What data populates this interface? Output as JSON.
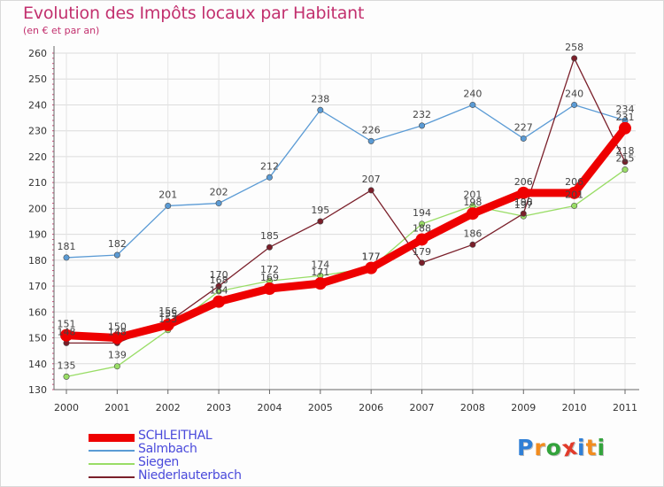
{
  "chart_data": {
    "type": "line",
    "title": "Evolution des Impôts locaux par Habitant",
    "subtitle": "(en € et par an)",
    "xlabel": "",
    "ylabel": "",
    "x": [
      "2000",
      "2001",
      "2002",
      "2003",
      "2004",
      "2005",
      "2006",
      "2007",
      "2008",
      "2009",
      "2010",
      "2011"
    ],
    "ylim": [
      130,
      260
    ],
    "yticks": [
      130,
      140,
      150,
      160,
      170,
      180,
      190,
      200,
      210,
      220,
      230,
      240,
      250,
      260
    ],
    "grid": true,
    "legend_position": "bottom-left",
    "series": [
      {
        "name": "SCHLEITHAL",
        "color": "#ee0000",
        "values": [
          151,
          150,
          155,
          164,
          169,
          171,
          177,
          188,
          198,
          206,
          206,
          231
        ]
      },
      {
        "name": "Salmbach",
        "color": "#5b9bd5",
        "values": [
          181,
          182,
          201,
          202,
          212,
          238,
          226,
          232,
          240,
          227,
          240,
          234
        ]
      },
      {
        "name": "Siegen",
        "color": "#99dd66",
        "values": [
          135,
          139,
          153,
          168,
          172,
          174,
          177,
          194,
          201,
          197,
          201,
          215
        ]
      },
      {
        "name": "Niederlauterbach",
        "color": "#7a1f2a",
        "values": [
          148,
          148,
          156,
          170,
          185,
          195,
          207,
          179,
          186,
          198,
          258,
          218
        ]
      }
    ]
  },
  "legend": {
    "items": [
      {
        "label": "SCHLEITHAL",
        "color": "#ee0000"
      },
      {
        "label": "Salmbach",
        "color": "#5b9bd5"
      },
      {
        "label": "Siegen",
        "color": "#99dd66"
      },
      {
        "label": "Niederlauterbach",
        "color": "#7a1f2a"
      }
    ]
  },
  "logo": {
    "text": "Proxiti",
    "letters": [
      "P",
      "r",
      "o",
      "x",
      "i",
      "t",
      "i"
    ],
    "colors": [
      "#2f7fd6",
      "#f28c1e",
      "#33a33c",
      "#e23b2b",
      "#2f7fd6",
      "#f28c1e",
      "#33a33c"
    ]
  }
}
